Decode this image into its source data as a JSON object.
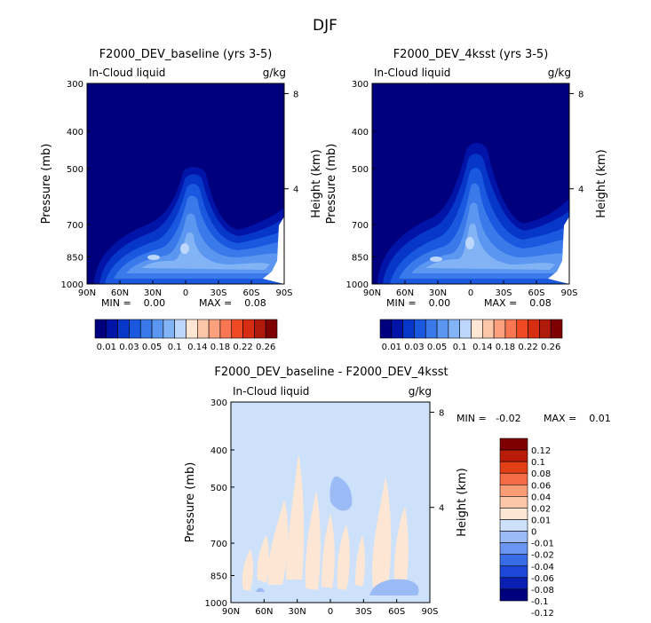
{
  "figure_title": "DJF",
  "colors": {
    "base_scale": [
      "#00007f",
      "#0015a8",
      "#0637c8",
      "#1958df",
      "#3a79ea",
      "#5b96f0",
      "#82b4f5",
      "#bcd7fb",
      "#fde6d3",
      "#fcc7a9",
      "#fca07d",
      "#f97652",
      "#f04a24",
      "#d72d11",
      "#b01a0a",
      "#7f0000"
    ],
    "diff_scale": [
      "#00007f",
      "#0a1fb2",
      "#1d47d6",
      "#3a6ce8",
      "#6a95f1",
      "#9bbbf6",
      "#cde1fb",
      "#fde6d3",
      "#fcc7a9",
      "#fa9d77",
      "#f56b43",
      "#e23f16",
      "#b81c08",
      "#7f0000"
    ]
  },
  "chart_data": [
    {
      "type": "contour",
      "title": "F2000_DEV_baseline (yrs 3-5)",
      "variable_label": "In-Cloud liquid",
      "units": "g/kg",
      "xlabel": "",
      "ylabel": "Pressure (mb)",
      "right_label": "Height (km)",
      "x_ticks": [
        "90N",
        "60N",
        "30N",
        "0",
        "30S",
        "60S",
        "90S"
      ],
      "y_ticks": [
        300,
        400,
        500,
        700,
        850,
        1000
      ],
      "right_ticks": [
        8,
        4
      ],
      "ylim": [
        300,
        1000
      ],
      "y_scale": "log",
      "min_text": "MIN =    0.00",
      "max_text": "MAX =    0.08",
      "colorbar": {
        "orientation": "horizontal",
        "levels": [
          "0.01",
          "0.03",
          "0.05",
          "0.1",
          "0.14",
          "0.18",
          "0.22",
          "0.26"
        ]
      }
    },
    {
      "type": "contour",
      "title": "F2000_DEV_4ksst (yrs 3-5)",
      "variable_label": "In-Cloud liquid",
      "units": "g/kg",
      "xlabel": "",
      "ylabel": "Pressure (mb)",
      "right_label": "Height (km)",
      "x_ticks": [
        "90N",
        "60N",
        "30N",
        "0",
        "30S",
        "60S",
        "90S"
      ],
      "y_ticks": [
        300,
        400,
        500,
        700,
        850,
        1000
      ],
      "right_ticks": [
        8,
        4
      ],
      "ylim": [
        300,
        1000
      ],
      "y_scale": "log",
      "min_text": "MIN =    0.00",
      "max_text": "MAX =    0.08",
      "colorbar": {
        "orientation": "horizontal",
        "levels": [
          "0.01",
          "0.03",
          "0.05",
          "0.1",
          "0.14",
          "0.18",
          "0.22",
          "0.26"
        ]
      }
    },
    {
      "type": "contour",
      "title": "F2000_DEV_baseline - F2000_DEV_4ksst",
      "variable_label": "In-Cloud liquid",
      "units": "g/kg",
      "xlabel": "",
      "ylabel": "Pressure (mb)",
      "right_label": "Height (km)",
      "x_ticks": [
        "90N",
        "60N",
        "30N",
        "0",
        "30S",
        "60S",
        "90S"
      ],
      "y_ticks": [
        300,
        400,
        500,
        700,
        850,
        1000
      ],
      "right_ticks": [
        8,
        4
      ],
      "ylim": [
        300,
        1000
      ],
      "y_scale": "log",
      "min_text": "MIN =   -0.02",
      "max_text": "MAX =    0.01",
      "colorbar": {
        "orientation": "vertical",
        "levels": [
          "0.12",
          "0.1",
          "0.08",
          "0.06",
          "0.04",
          "0.02",
          "0.01",
          "0",
          "-0.01",
          "-0.02",
          "-0.04",
          "-0.06",
          "-0.08",
          "-0.1",
          "-0.12"
        ]
      }
    }
  ]
}
